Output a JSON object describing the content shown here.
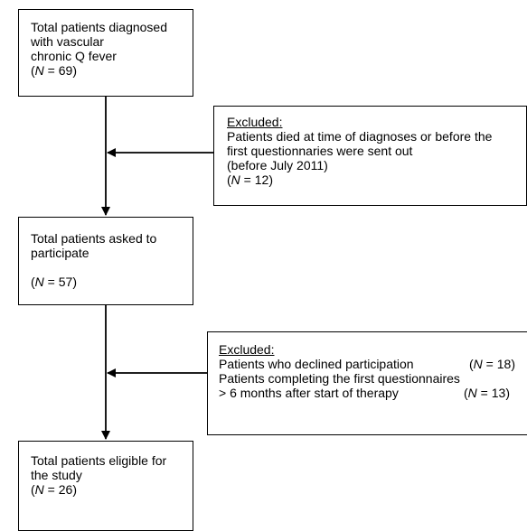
{
  "flowchart": {
    "step1": {
      "lines": [
        "Total patients diagnosed",
        "with vascular",
        "chronic Q fever"
      ],
      "n_label": "(N = 69)",
      "n": 69
    },
    "exclusion1": {
      "heading": "Excluded:",
      "lines": [
        "Patients died at time of diagnoses or before the",
        "first questionnaries were sent out",
        "(before July 2011)"
      ],
      "n_label": "(N = 12)",
      "n": 12
    },
    "step2": {
      "lines": [
        "Total patients asked to",
        "participate"
      ],
      "n_label": "(N = 57)",
      "n": 57
    },
    "exclusion2": {
      "heading": "Excluded:",
      "items": [
        {
          "text": "Patients who declined participation",
          "n_label": "(N  = 18)",
          "n": 18
        },
        {
          "text": "Patients completing the first questionnaires",
          "text2": "> 6 months after start of therapy",
          "n_label": "(N  = 13)",
          "n": 13
        }
      ]
    },
    "step3": {
      "lines": [
        "Total patients eligible for",
        "the study"
      ],
      "n_label": "(N = 26)",
      "n": 26
    }
  }
}
